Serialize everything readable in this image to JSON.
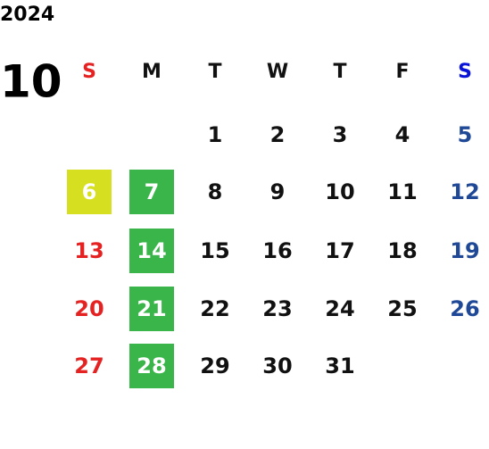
{
  "year": "2024",
  "month": "10",
  "weekdays": [
    "S",
    "M",
    "T",
    "W",
    "T",
    "F",
    "S"
  ],
  "weeks": [
    [
      null,
      null,
      1,
      2,
      3,
      4,
      5
    ],
    [
      6,
      7,
      8,
      9,
      10,
      11,
      12
    ],
    [
      13,
      14,
      15,
      16,
      17,
      18,
      19
    ],
    [
      20,
      21,
      22,
      23,
      24,
      25,
      26
    ],
    [
      27,
      28,
      29,
      30,
      31,
      null,
      null
    ]
  ],
  "colors": {
    "weekday": "#111111",
    "sunday": "#e52222",
    "saturday": "#1f4896",
    "saturday_header": "#0a14d8",
    "highlight_text": "#ffffff"
  },
  "highlights": [
    {
      "day": 6,
      "color": "#d6df20"
    },
    {
      "day": 7,
      "color": "#39b54a"
    },
    {
      "day": 14,
      "color": "#39b54a"
    },
    {
      "day": 21,
      "color": "#39b54a"
    },
    {
      "day": 28,
      "color": "#39b54a"
    }
  ]
}
